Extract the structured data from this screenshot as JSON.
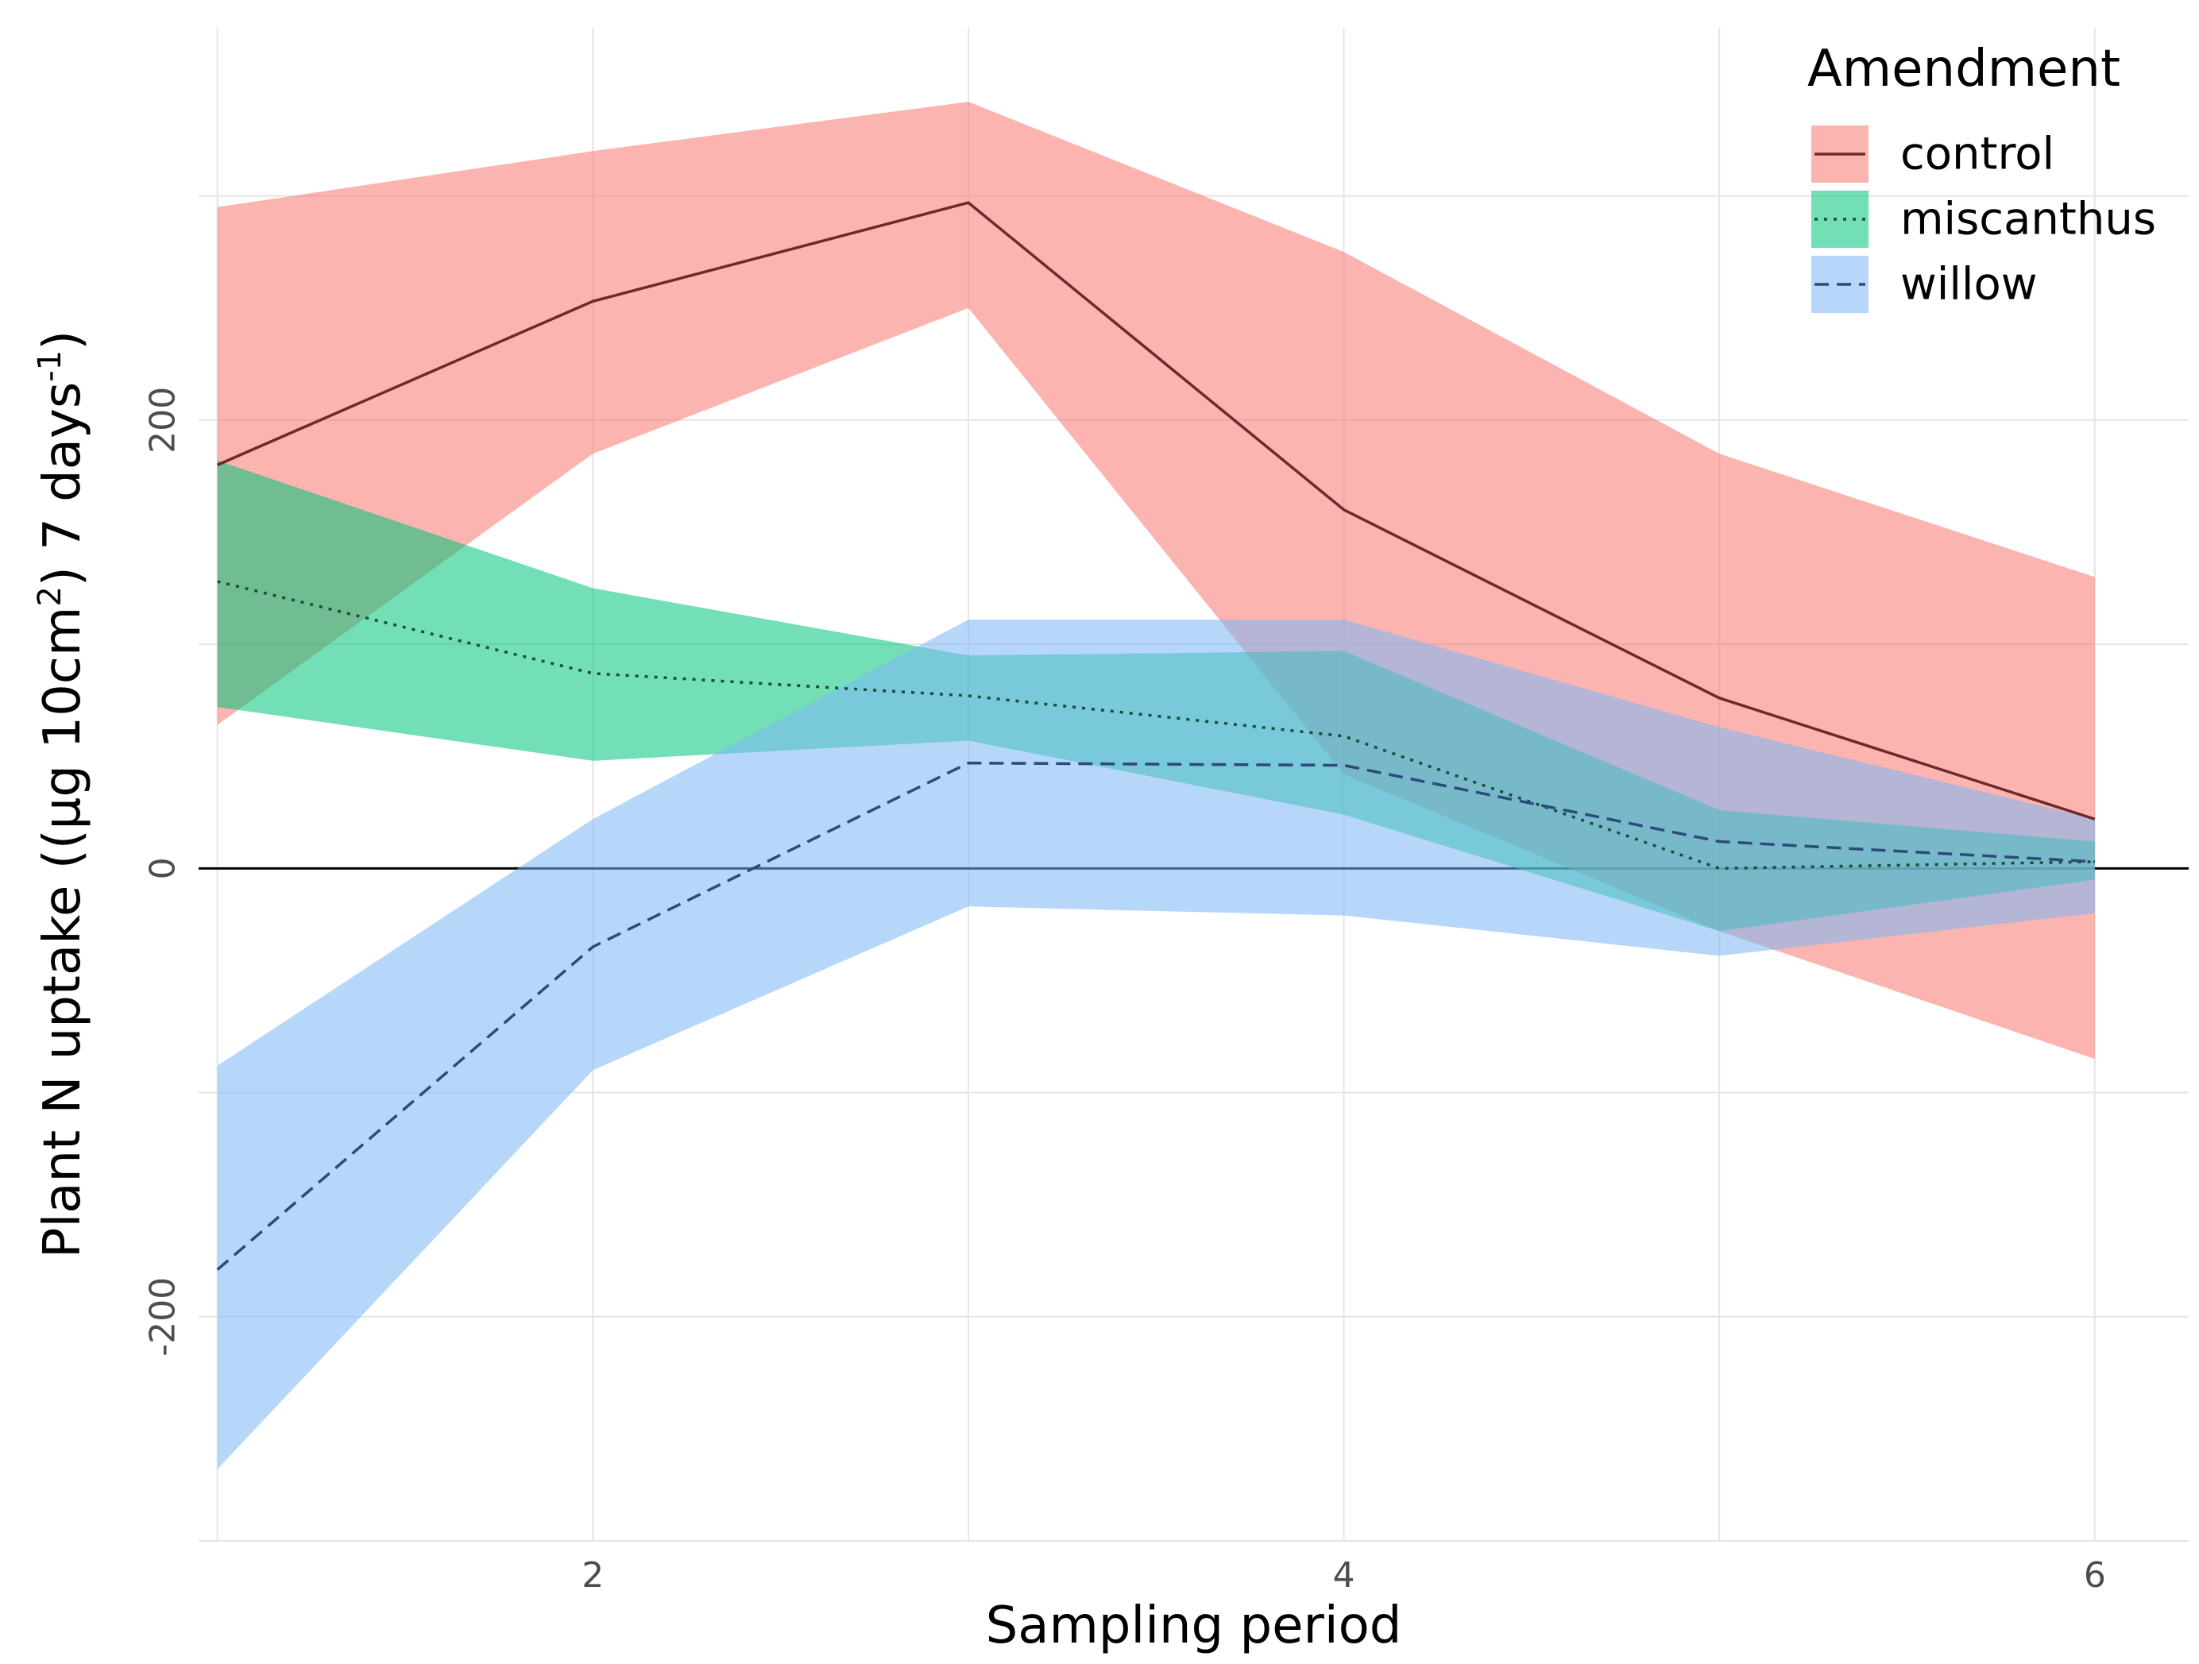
{
  "chart_data": {
    "type": "line",
    "title": "",
    "xlabel": "Sampling period",
    "ylabel": {
      "prefix": "Plant N uptake ((µg 10cm",
      "sup1": "2",
      "middle": ") 7 days",
      "sup2": "-1",
      "suffix": ")"
    },
    "x": [
      1,
      2,
      3,
      4,
      5,
      6
    ],
    "xlim": [
      0.95,
      6.25
    ],
    "ylim": [
      -300,
      375
    ],
    "x_ticks": [
      2,
      4,
      6
    ],
    "x_tick_labels": [
      "2",
      "4",
      "6"
    ],
    "y_ticks": [
      -200,
      0,
      200
    ],
    "y_tick_labels": [
      "-200",
      "0",
      "200"
    ],
    "grid": true,
    "zero_line": true,
    "legend": {
      "title": "Amendment",
      "position": "top-right",
      "entries": [
        "control",
        "miscanthus",
        "willow"
      ]
    },
    "series": [
      {
        "name": "control",
        "line_style": "solid",
        "line_color": "#6b2b2b",
        "band_color": "#f8766d",
        "values": [
          180,
          253,
          297,
          160,
          76,
          22
        ],
        "lower": [
          64,
          185,
          250,
          42,
          -28,
          -85
        ],
        "upper": [
          295,
          320,
          342,
          275,
          185,
          130
        ]
      },
      {
        "name": "miscanthus",
        "line_style": "dotted",
        "line_color": "#1a4d3a",
        "band_color": "#00c47a",
        "values": [
          128,
          87,
          77,
          59,
          0,
          3
        ],
        "lower": [
          72,
          48,
          57,
          24,
          -28,
          -5
        ],
        "upper": [
          182,
          125,
          95,
          97,
          26,
          12
        ]
      },
      {
        "name": "willow",
        "line_style": "dashed",
        "line_color": "#2c4a7a",
        "band_color": "#7cb6f5",
        "values": [
          -179,
          -35,
          47,
          46,
          12,
          3
        ],
        "lower": [
          -268,
          -90,
          -17,
          -21,
          -39,
          -20
        ],
        "upper": [
          -88,
          22,
          111,
          111,
          63,
          22
        ]
      }
    ]
  }
}
